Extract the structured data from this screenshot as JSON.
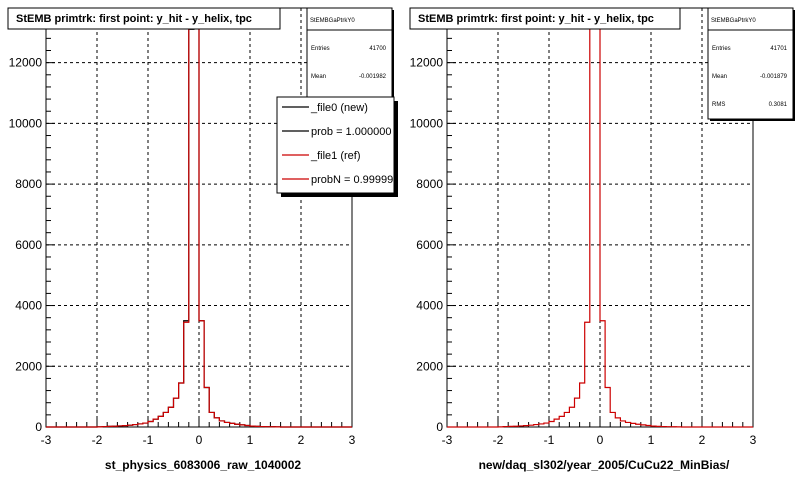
{
  "chart_data": [
    {
      "type": "histogram",
      "title": "StEMB primtrk: first point: y_hit - y_helix, tpc",
      "xlabel": "st_physics_6083006_raw_1040002",
      "ylabel": "",
      "xlim": [
        -3,
        3
      ],
      "ylim": [
        0,
        13800
      ],
      "grid": true,
      "x_ticks": [
        "-3",
        "-2",
        "-1",
        "0",
        "1",
        "2",
        "3"
      ],
      "y_ticks": [
        "0",
        "2000",
        "4000",
        "6000",
        "8000",
        "10000",
        "12000"
      ],
      "stats": {
        "name": "StEMBGaPtrkY0",
        "entries_label": "Entries",
        "entries": "41700",
        "mean_label": "Mean",
        "mean": "-0.001982"
      },
      "legend": {
        "placement": "top-right",
        "entries": [
          "_file0 (new)",
          "prob = 1.000000",
          "_file1 (ref)",
          "probN = 0.99999"
        ]
      },
      "bin_width": 0.1,
      "bin_centers": [
        -2.95,
        -2.85,
        -2.75,
        -2.65,
        -2.55,
        -2.45,
        -2.35,
        -2.25,
        -2.15,
        -2.05,
        -1.95,
        -1.85,
        -1.75,
        -1.65,
        -1.55,
        -1.45,
        -1.35,
        -1.25,
        -1.15,
        -1.05,
        -0.95,
        -0.85,
        -0.75,
        -0.65,
        -0.55,
        -0.45,
        -0.35,
        -0.25,
        -0.15,
        -0.05,
        0.05,
        0.15,
        0.25,
        0.35,
        0.45,
        0.55,
        0.65,
        0.75,
        0.85,
        0.95,
        1.05,
        1.15,
        1.25,
        1.35,
        1.45,
        1.55,
        1.65,
        1.75,
        1.85,
        1.95,
        2.05,
        2.15,
        2.25,
        2.35,
        2.45,
        2.55,
        2.65,
        2.75,
        2.85,
        2.95
      ],
      "series": [
        {
          "name": "_file0 (new)",
          "color": "#000000",
          "values": [
            0,
            0,
            0,
            0,
            0,
            0,
            0,
            0,
            0,
            0,
            5,
            15,
            20,
            25,
            35,
            45,
            60,
            80,
            100,
            130,
            180,
            260,
            350,
            480,
            650,
            950,
            1450,
            3500,
            13100,
            13250,
            3500,
            1300,
            480,
            300,
            200,
            150,
            120,
            90,
            70,
            50,
            30,
            20,
            15,
            10,
            8,
            5,
            0,
            0,
            0,
            0,
            0,
            0,
            0,
            0,
            0,
            0,
            0,
            0,
            0,
            0
          ]
        },
        {
          "name": "_file1 (ref)",
          "color": "#cc0000",
          "values": [
            0,
            0,
            0,
            0,
            0,
            0,
            0,
            0,
            0,
            0,
            5,
            15,
            20,
            25,
            35,
            45,
            60,
            80,
            100,
            130,
            180,
            260,
            350,
            480,
            650,
            950,
            1450,
            3450,
            13150,
            13300,
            3500,
            1300,
            480,
            300,
            200,
            150,
            120,
            90,
            70,
            50,
            30,
            20,
            15,
            10,
            8,
            5,
            0,
            0,
            0,
            0,
            0,
            0,
            0,
            0,
            0,
            0,
            0,
            0,
            0,
            0
          ]
        }
      ]
    },
    {
      "type": "histogram",
      "title": "StEMB primtrk: first point: y_hit - y_helix, tpc",
      "xlabel": "new/daq_sl302/year_2005/CuCu22_MinBias/",
      "ylabel": "",
      "xlim": [
        -3,
        3
      ],
      "ylim": [
        0,
        13800
      ],
      "grid": true,
      "x_ticks": [
        "-3",
        "-2",
        "-1",
        "0",
        "1",
        "2",
        "3"
      ],
      "y_ticks": [
        "0",
        "2000",
        "4000",
        "6000",
        "8000",
        "10000",
        "12000"
      ],
      "stats": {
        "name": "StEMBGaPtrkY0",
        "entries_label": "Entries",
        "entries": "41701",
        "mean_label": "Mean",
        "mean": "-0.001879",
        "rms_label": "RMS",
        "rms": "0.3081"
      },
      "bin_width": 0.1,
      "bin_centers": [
        -2.95,
        -2.85,
        -2.75,
        -2.65,
        -2.55,
        -2.45,
        -2.35,
        -2.25,
        -2.15,
        -2.05,
        -1.95,
        -1.85,
        -1.75,
        -1.65,
        -1.55,
        -1.45,
        -1.35,
        -1.25,
        -1.15,
        -1.05,
        -0.95,
        -0.85,
        -0.75,
        -0.65,
        -0.55,
        -0.45,
        -0.35,
        -0.25,
        -0.15,
        -0.05,
        0.05,
        0.15,
        0.25,
        0.35,
        0.45,
        0.55,
        0.65,
        0.75,
        0.85,
        0.95,
        1.05,
        1.15,
        1.25,
        1.35,
        1.45,
        1.55,
        1.65,
        1.75,
        1.85,
        1.95,
        2.05,
        2.15,
        2.25,
        2.35,
        2.45,
        2.55,
        2.65,
        2.75,
        2.85,
        2.95
      ],
      "series": [
        {
          "color": "#cc0000",
          "values": [
            0,
            0,
            0,
            0,
            0,
            0,
            0,
            0,
            0,
            0,
            5,
            15,
            20,
            25,
            35,
            45,
            60,
            80,
            100,
            130,
            180,
            260,
            350,
            480,
            650,
            950,
            1450,
            3450,
            13150,
            13300,
            3500,
            1300,
            480,
            300,
            200,
            150,
            120,
            90,
            70,
            50,
            30,
            20,
            15,
            10,
            8,
            5,
            0,
            0,
            0,
            0,
            0,
            0,
            0,
            0,
            0,
            0,
            0,
            0,
            0,
            0
          ]
        }
      ]
    }
  ]
}
